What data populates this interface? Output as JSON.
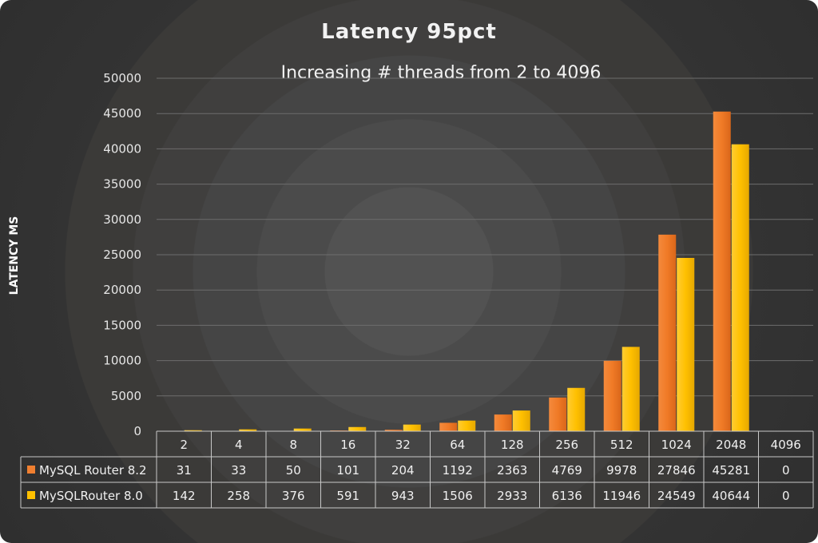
{
  "chart_data": {
    "type": "bar",
    "title": "Latency 95pct",
    "subtitle": "Increasing # threads from 2 to 4096",
    "ylabel": "LATENCY MS",
    "xlabel": "",
    "ylim": [
      0,
      50000
    ],
    "yticks": [
      0,
      5000,
      10000,
      15000,
      20000,
      25000,
      30000,
      35000,
      40000,
      45000,
      50000
    ],
    "grid": true,
    "legend": "data-table",
    "categories": [
      "2",
      "4",
      "8",
      "16",
      "32",
      "64",
      "128",
      "256",
      "512",
      "1024",
      "2048",
      "4096"
    ],
    "series": [
      {
        "name": "MySQL Router 8.2",
        "color": "#f07f30",
        "values": [
          31,
          33,
          50,
          101,
          204,
          1192,
          2363,
          4769,
          9978,
          27846,
          45281,
          0
        ]
      },
      {
        "name": "MySQLRouter 8.0",
        "color": "#ffc000",
        "values": [
          142,
          258,
          376,
          591,
          943,
          1506,
          2933,
          6136,
          11946,
          24549,
          40644,
          0
        ]
      }
    ]
  }
}
